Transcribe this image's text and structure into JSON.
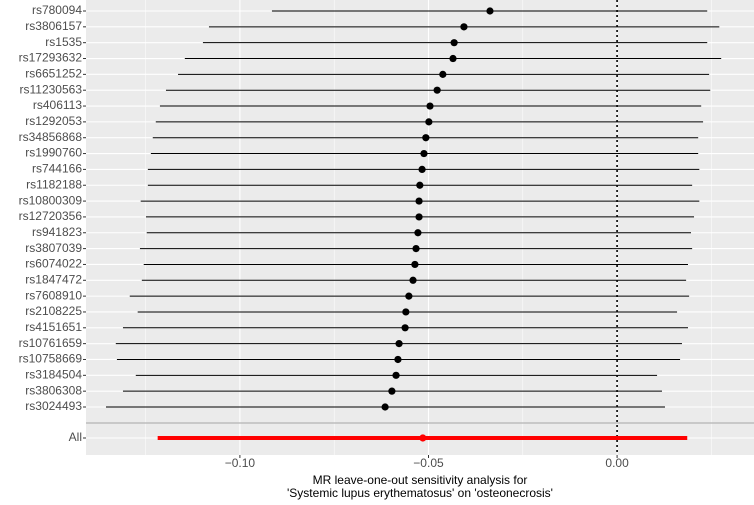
{
  "chart_data": {
    "type": "forest",
    "xlabel": [
      "MR leave-one-out sensitivity analysis for",
      "'Systemic lupus erythematosus' on 'osteonecrosis'"
    ],
    "categories": [
      "rs780094",
      "rs3806157",
      "rs1535",
      "rs17293632",
      "rs6651252",
      "rs11230563",
      "rs406113",
      "rs1292053",
      "rs34856868",
      "rs1990760",
      "rs744166",
      "rs1182188",
      "rs10800309",
      "rs12720356",
      "rs941823",
      "rs3807039",
      "rs6074022",
      "rs1847472",
      "rs7608910",
      "rs2108225",
      "rs4151651",
      "rs10761659",
      "rs10758669",
      "rs3184504",
      "rs3806308",
      "rs3024493"
    ],
    "values": [
      -0.0337,
      -0.0406,
      -0.0432,
      -0.0435,
      -0.0462,
      -0.0477,
      -0.0496,
      -0.0499,
      -0.0507,
      -0.0512,
      -0.0517,
      -0.0523,
      -0.0525,
      -0.0525,
      -0.0528,
      -0.0533,
      -0.0536,
      -0.0541,
      -0.0552,
      -0.056,
      -0.0562,
      -0.0578,
      -0.0581,
      -0.0586,
      -0.0597,
      -0.0615
    ],
    "lower": [
      -0.0915,
      -0.1082,
      -0.1098,
      -0.1146,
      -0.1164,
      -0.1196,
      -0.1212,
      -0.1223,
      -0.1231,
      -0.1236,
      -0.1244,
      -0.1244,
      -0.1263,
      -0.1249,
      -0.1247,
      -0.1265,
      -0.1255,
      -0.126,
      -0.1292,
      -0.1271,
      -0.131,
      -0.1329,
      -0.1326,
      -0.1276,
      -0.131,
      -0.1355
    ],
    "upper": [
      0.0239,
      0.0271,
      0.0239,
      0.0276,
      0.0244,
      0.0247,
      0.0223,
      0.0228,
      0.0215,
      0.0215,
      0.0218,
      0.0199,
      0.0218,
      0.0204,
      0.0196,
      0.0199,
      0.0188,
      0.0183,
      0.0191,
      0.0159,
      0.0188,
      0.0172,
      0.0167,
      0.0106,
      0.0119,
      0.0127
    ],
    "color": "#000000",
    "summary": {
      "name": "All",
      "value": -0.0515,
      "lower": -0.1218,
      "upper": 0.0186,
      "color": "#ff0000"
    },
    "reference_line": 0,
    "xlim": [
      -0.1408,
      0.0363
    ],
    "xticks": [
      {
        "value": -0.1,
        "label": "−0.10"
      },
      {
        "value": -0.05,
        "label": "−0.05"
      },
      {
        "value": 0,
        "label": "0.00"
      }
    ],
    "grid": true
  }
}
